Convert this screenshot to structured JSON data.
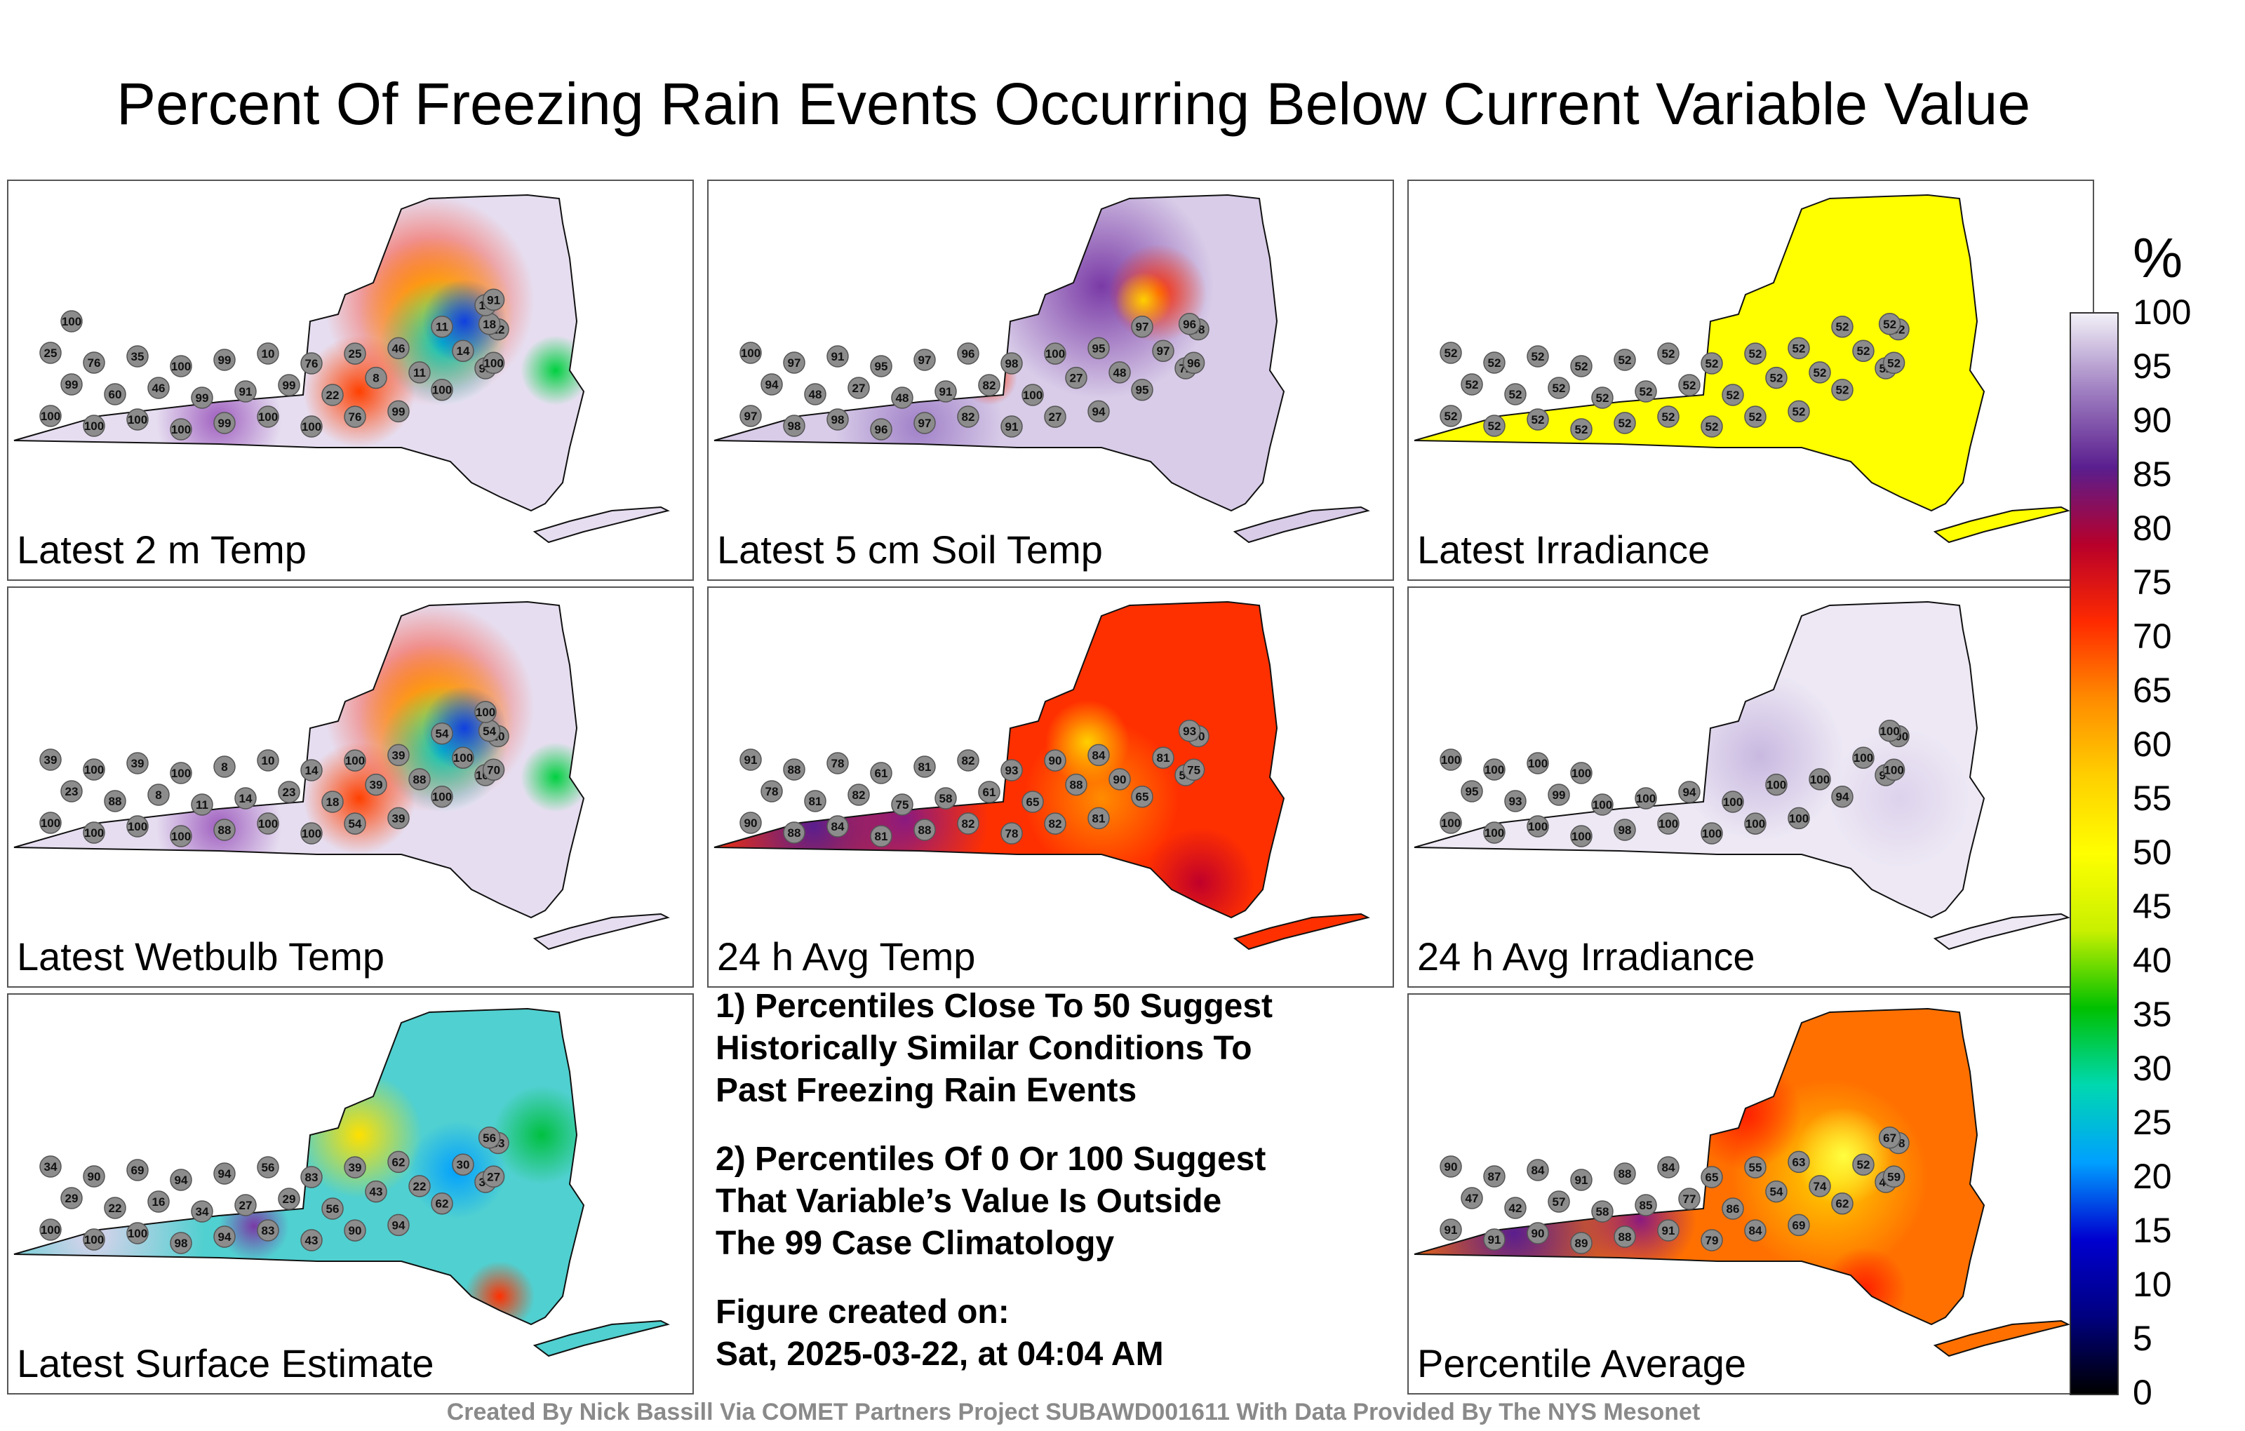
{
  "title": "Percent Of Freezing Rain Events Occurring Below Current Variable Value",
  "panels": [
    {
      "id": "p1",
      "label": "Latest 2 m Temp",
      "theme": "mixed",
      "values": [
        100,
        100,
        100,
        100,
        99,
        100,
        100,
        76,
        99,
        100,
        99,
        100,
        99,
        60,
        46,
        99,
        91,
        99,
        22,
        8,
        11,
        14,
        22,
        18,
        25,
        76,
        35,
        100,
        99,
        10,
        76,
        25,
        46,
        11,
        10,
        91,
        100
      ]
    },
    {
      "id": "p2",
      "label": "Latest 5 cm Soil Temp",
      "theme": "mostlyhigh",
      "values": [
        97,
        98,
        98,
        96,
        97,
        82,
        91,
        27,
        94,
        95,
        72,
        96,
        94,
        48,
        27,
        48,
        91,
        82,
        100,
        27,
        48,
        97,
        98,
        96,
        100,
        97,
        91,
        95,
        97,
        96,
        98,
        100,
        95,
        97
      ]
    },
    {
      "id": "p3",
      "label": "Latest Irradiance",
      "theme": "yellow",
      "values": [
        52,
        52,
        52,
        52,
        52,
        52,
        52,
        52,
        52,
        52,
        52,
        52,
        52,
        52,
        52,
        52,
        52,
        52,
        52,
        52,
        52,
        52,
        52,
        52,
        52,
        52,
        52,
        52,
        52,
        52,
        52,
        52,
        52,
        52
      ]
    },
    {
      "id": "p4",
      "label": "Latest Wetbulb Temp",
      "theme": "mixed",
      "values": [
        100,
        100,
        100,
        100,
        88,
        100,
        100,
        54,
        39,
        100,
        100,
        70,
        23,
        88,
        8,
        11,
        14,
        23,
        18,
        39,
        88,
        100,
        10,
        54,
        39,
        100,
        39,
        100,
        8,
        10,
        14,
        100,
        39,
        54,
        100
      ]
    },
    {
      "id": "p5",
      "label": "24 h Avg Temp",
      "theme": "warm",
      "values": [
        90,
        88,
        84,
        81,
        88,
        82,
        78,
        82,
        81,
        65,
        58,
        75,
        78,
        81,
        82,
        75,
        58,
        61,
        65,
        88,
        90,
        81,
        90,
        93,
        91,
        88,
        78,
        61,
        81,
        82,
        93,
        90,
        84
      ]
    },
    {
      "id": "p6",
      "label": "24 h Avg Irradiance",
      "theme": "pale",
      "values": [
        100,
        100,
        100,
        100,
        98,
        100,
        100,
        100,
        100,
        94,
        97,
        100,
        95,
        93,
        99,
        100,
        100,
        94,
        100,
        100,
        100,
        100,
        100,
        100,
        100,
        100,
        100,
        100
      ]
    },
    {
      "id": "p7",
      "label": "Latest Surface Estimate",
      "theme": "cool",
      "values": [
        100,
        100,
        100,
        98,
        94,
        83,
        43,
        90,
        94,
        62,
        34,
        27,
        29,
        22,
        16,
        34,
        27,
        29,
        56,
        43,
        22,
        30,
        83,
        56,
        34,
        90,
        69,
        94,
        94,
        56,
        83,
        39,
        62
      ]
    },
    {
      "id": "p8",
      "label": "Percentile Average",
      "theme": "avg",
      "values": [
        91,
        91,
        90,
        89,
        88,
        91,
        79,
        84,
        69,
        62,
        48,
        59,
        47,
        42,
        57,
        58,
        85,
        77,
        86,
        54,
        74,
        52,
        78,
        67,
        90,
        87,
        84,
        91,
        88,
        84,
        65,
        55,
        63
      ]
    }
  ],
  "notes": {
    "n1": [
      "1) Percentiles Close To 50 Suggest",
      "Historically Similar Conditions To",
      "Past Freezing Rain Events"
    ],
    "n2": [
      "2) Percentiles Of 0 Or 100 Suggest",
      "That Variable’s Value Is Outside",
      "The 99 Case Climatology"
    ],
    "n3": [
      "Figure created on:",
      "Sat, 2025-03-22, at 04:04 AM"
    ]
  },
  "footer": "Created By Nick Bassill Via COMET Partners Project SUBAWD001611 With Data Provided By The NYS Mesonet",
  "colorbar": {
    "unit": "%",
    "ticks": [
      "100",
      "95",
      "90",
      "85",
      "80",
      "75",
      "70",
      "65",
      "60",
      "55",
      "50",
      "45",
      "40",
      "35",
      "30",
      "25",
      "20",
      "15",
      "10",
      "5",
      "0"
    ],
    "stops": [
      "#f2f0f7",
      "#9f7fc1",
      "#5a1e8e",
      "#b8002a",
      "#ff2a00",
      "#ff8c00",
      "#ffd000",
      "#ffff00",
      "#c8f000",
      "#00c000",
      "#00d8b0",
      "#00a0ff",
      "#0000d0",
      "#000080",
      "#000000"
    ]
  }
}
